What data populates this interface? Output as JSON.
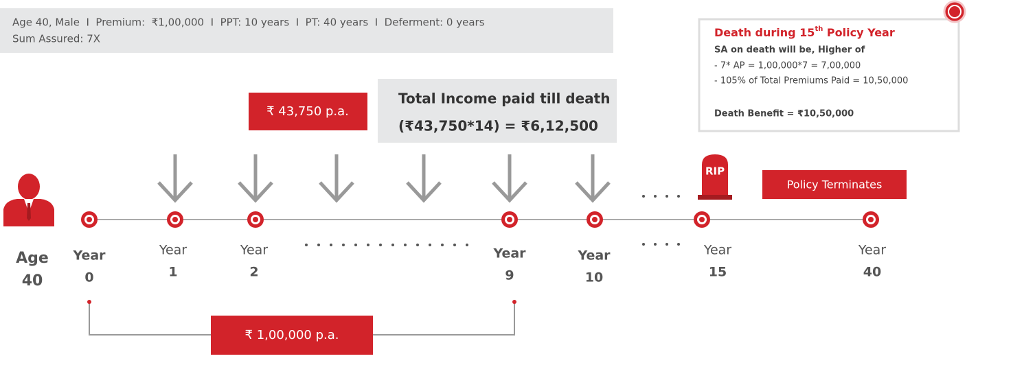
{
  "header": {
    "line1": "Age 40, Male  I  Premium:  ₹1,00,000  I  PPT: 10 years  I  PT: 40 years  I  Deferment: 0 years",
    "line2": "Sum Assured: 7X"
  },
  "income_badge": "₹ 43,750 p.a.",
  "total_income": {
    "line1": "Total Income paid till death",
    "line2": "(₹43,750*14) = ₹6,12,500"
  },
  "death_box": {
    "title_main": "Death during 15",
    "title_sup": "th",
    "title_end": " Policy Year",
    "subtitle": "SA on death will be, Higher of",
    "option1": "- 7* AP = 1,00,000*7 = 7,00,000",
    "option2": "- 105% of Total Premiums Paid = 10,50,000",
    "benefit": "Death Benefit = ₹10,50,000"
  },
  "rip": "RIP",
  "terminates": "Policy Terminates",
  "age": {
    "label": "Age",
    "value": "40"
  },
  "years": [
    {
      "label": "Year",
      "number": "0"
    },
    {
      "label": "Year",
      "number": "1"
    },
    {
      "label": "Year",
      "number": "2"
    },
    {
      "label": "Year",
      "number": "9"
    },
    {
      "label": "Year",
      "number": "10"
    },
    {
      "label": "Year",
      "number": "15"
    },
    {
      "label": "Year",
      "number": "40"
    }
  ],
  "premium_badge": "₹ 1,00,000 p.a."
}
